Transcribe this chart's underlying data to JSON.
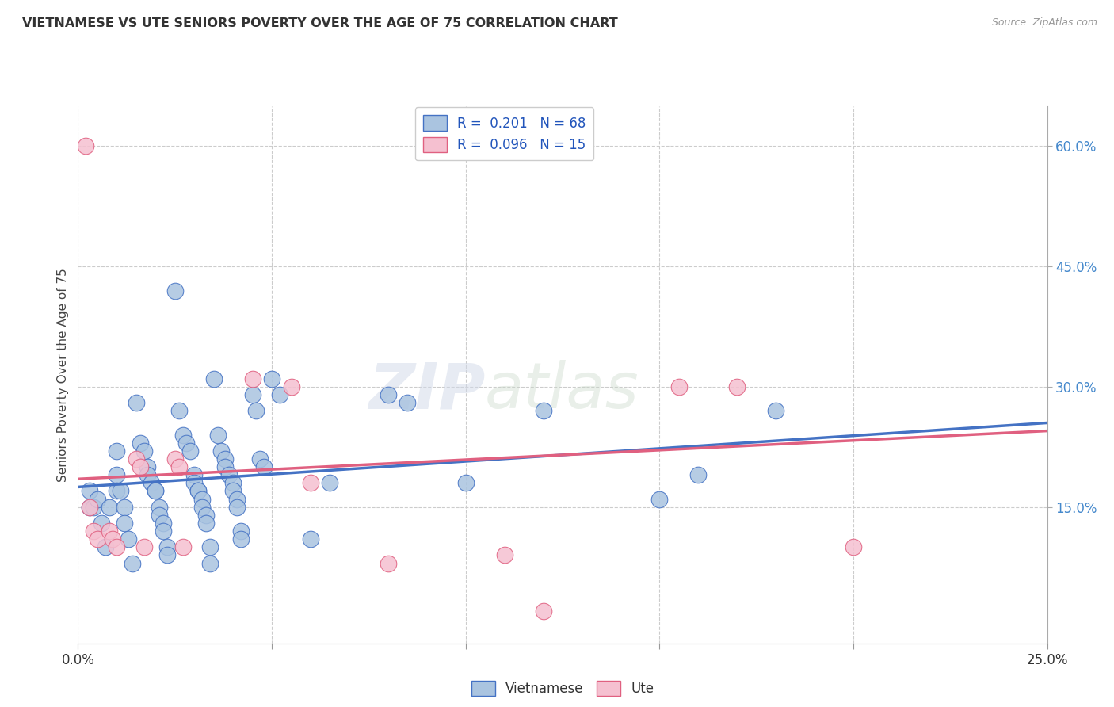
{
  "title": "VIETNAMESE VS UTE SENIORS POVERTY OVER THE AGE OF 75 CORRELATION CHART",
  "source": "Source: ZipAtlas.com",
  "ylabel_label": "Seniors Poverty Over the Age of 75",
  "xlim": [
    0.0,
    25.0
  ],
  "ylim": [
    -2.0,
    65.0
  ],
  "xticks": [
    0.0,
    5.0,
    10.0,
    15.0,
    20.0,
    25.0
  ],
  "ytick_positions_right": [
    15.0,
    30.0,
    45.0,
    60.0
  ],
  "ytick_labels_right": [
    "15.0%",
    "30.0%",
    "45.0%",
    "60.0%"
  ],
  "background_color": "#ffffff",
  "grid_color": "#cccccc",
  "watermark_zip": "ZIP",
  "watermark_atlas": "atlas",
  "blue_color": "#4472c4",
  "blue_fill": "#aac4e0",
  "pink_color": "#e06080",
  "pink_fill": "#f5c0d0",
  "title_color": "#333333",
  "right_tick_color": "#4488cc",
  "legend_text_color": "#2255bb",
  "vietnamese_points": [
    [
      0.3,
      17.0
    ],
    [
      0.3,
      15.0
    ],
    [
      0.4,
      15.0
    ],
    [
      0.5,
      16.0
    ],
    [
      0.6,
      13.0
    ],
    [
      0.7,
      10.0
    ],
    [
      0.8,
      15.0
    ],
    [
      1.0,
      19.0
    ],
    [
      1.0,
      22.0
    ],
    [
      1.0,
      17.0
    ],
    [
      1.1,
      17.0
    ],
    [
      1.2,
      15.0
    ],
    [
      1.2,
      13.0
    ],
    [
      1.3,
      11.0
    ],
    [
      1.4,
      8.0
    ],
    [
      1.5,
      28.0
    ],
    [
      1.6,
      23.0
    ],
    [
      1.7,
      22.0
    ],
    [
      1.8,
      20.0
    ],
    [
      1.8,
      19.0
    ],
    [
      1.9,
      18.0
    ],
    [
      2.0,
      17.0
    ],
    [
      2.0,
      17.0
    ],
    [
      2.1,
      15.0
    ],
    [
      2.1,
      14.0
    ],
    [
      2.2,
      13.0
    ],
    [
      2.2,
      12.0
    ],
    [
      2.3,
      10.0
    ],
    [
      2.3,
      9.0
    ],
    [
      2.5,
      42.0
    ],
    [
      2.6,
      27.0
    ],
    [
      2.7,
      24.0
    ],
    [
      2.8,
      23.0
    ],
    [
      2.9,
      22.0
    ],
    [
      3.0,
      19.0
    ],
    [
      3.0,
      18.0
    ],
    [
      3.1,
      17.0
    ],
    [
      3.1,
      17.0
    ],
    [
      3.2,
      16.0
    ],
    [
      3.2,
      15.0
    ],
    [
      3.3,
      14.0
    ],
    [
      3.3,
      13.0
    ],
    [
      3.4,
      10.0
    ],
    [
      3.4,
      8.0
    ],
    [
      3.5,
      31.0
    ],
    [
      3.6,
      24.0
    ],
    [
      3.7,
      22.0
    ],
    [
      3.8,
      21.0
    ],
    [
      3.8,
      20.0
    ],
    [
      3.9,
      19.0
    ],
    [
      4.0,
      18.0
    ],
    [
      4.0,
      17.0
    ],
    [
      4.1,
      16.0
    ],
    [
      4.1,
      15.0
    ],
    [
      4.2,
      12.0
    ],
    [
      4.2,
      11.0
    ],
    [
      4.5,
      29.0
    ],
    [
      4.6,
      27.0
    ],
    [
      4.7,
      21.0
    ],
    [
      4.8,
      20.0
    ],
    [
      5.0,
      31.0
    ],
    [
      5.2,
      29.0
    ],
    [
      6.0,
      11.0
    ],
    [
      6.5,
      18.0
    ],
    [
      8.0,
      29.0
    ],
    [
      8.5,
      28.0
    ],
    [
      10.0,
      18.0
    ],
    [
      12.0,
      27.0
    ],
    [
      15.0,
      16.0
    ],
    [
      16.0,
      19.0
    ],
    [
      18.0,
      27.0
    ]
  ],
  "ute_points": [
    [
      0.2,
      60.0
    ],
    [
      0.3,
      15.0
    ],
    [
      0.4,
      12.0
    ],
    [
      0.5,
      11.0
    ],
    [
      0.8,
      12.0
    ],
    [
      0.9,
      11.0
    ],
    [
      1.0,
      10.0
    ],
    [
      1.5,
      21.0
    ],
    [
      1.6,
      20.0
    ],
    [
      1.7,
      10.0
    ],
    [
      2.5,
      21.0
    ],
    [
      2.6,
      20.0
    ],
    [
      2.7,
      10.0
    ],
    [
      4.5,
      31.0
    ],
    [
      5.5,
      30.0
    ],
    [
      6.0,
      18.0
    ],
    [
      8.0,
      8.0
    ],
    [
      11.0,
      9.0
    ],
    [
      12.0,
      2.0
    ],
    [
      15.5,
      30.0
    ],
    [
      17.0,
      30.0
    ],
    [
      20.0,
      10.0
    ]
  ],
  "viet_line_x": [
    0.0,
    25.0
  ],
  "viet_line_y": [
    17.5,
    25.5
  ],
  "ute_line_x": [
    0.0,
    25.0
  ],
  "ute_line_y": [
    18.5,
    24.5
  ]
}
